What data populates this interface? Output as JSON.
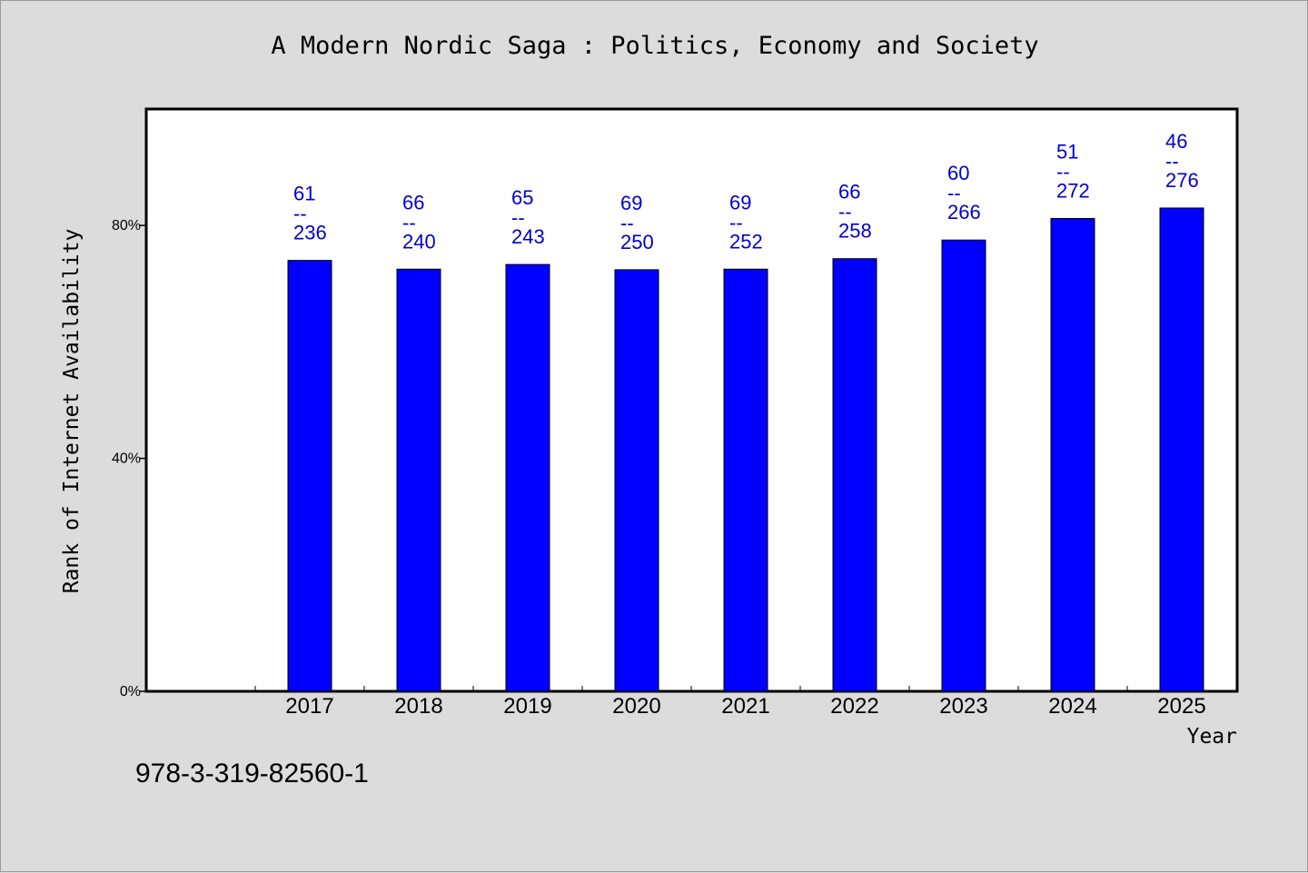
{
  "chart_data": {
    "type": "bar",
    "title": "A Modern Nordic Saga : Politics, Economy and Society",
    "xlabel": "Year",
    "ylabel": "Rank of Internet Availability",
    "ylim": [
      0,
      100
    ],
    "yticks": [
      0,
      40,
      80
    ],
    "ytick_labels": [
      "0%",
      "40%",
      "80%"
    ],
    "categories": [
      "2017",
      "2018",
      "2019",
      "2020",
      "2021",
      "2022",
      "2023",
      "2024",
      "2025"
    ],
    "values": [
      74,
      72.5,
      73.3,
      72.4,
      72.5,
      74.3,
      77.5,
      81.2,
      83
    ],
    "data_labels": [
      {
        "rank": "61",
        "sep": "--",
        "total": "236"
      },
      {
        "rank": "66",
        "sep": "--",
        "total": "240"
      },
      {
        "rank": "65",
        "sep": "--",
        "total": "243"
      },
      {
        "rank": "69",
        "sep": "--",
        "total": "250"
      },
      {
        "rank": "69",
        "sep": "--",
        "total": "252"
      },
      {
        "rank": "66",
        "sep": "--",
        "total": "258"
      },
      {
        "rank": "60",
        "sep": "--",
        "total": "266"
      },
      {
        "rank": "51",
        "sep": "--",
        "total": "272"
      },
      {
        "rank": "46",
        "sep": "--",
        "total": "276"
      }
    ],
    "bar_color": "#0000ff",
    "label_color": "#0000cc",
    "plot_background": "#ffffff",
    "page_background": "#dcdcdc",
    "grid": false,
    "legend": "none"
  },
  "footer": {
    "isbn": "978-3-319-82560-1"
  }
}
